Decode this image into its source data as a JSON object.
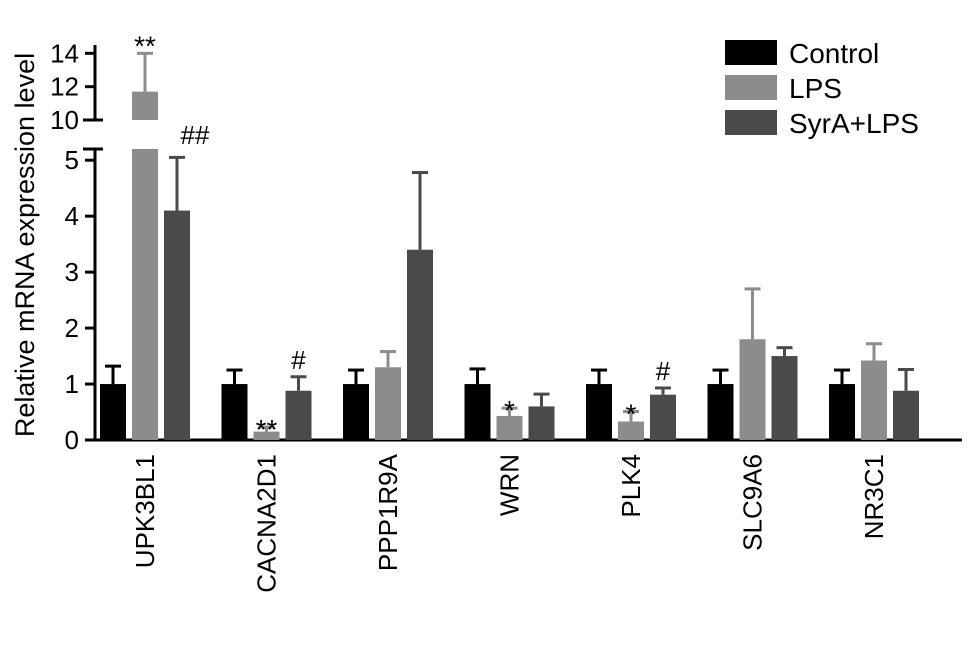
{
  "chart_data": {
    "type": "bar",
    "title": "",
    "xlabel": "",
    "ylabel": "Relative mRNA expression level",
    "categories": [
      "UPK3BL1",
      "CACNA2D1",
      "PPP1R9A",
      "WRN",
      "PLK4",
      "SLC9A6",
      "NR3C1"
    ],
    "series": [
      {
        "name": "Control",
        "color": "#000000",
        "values": [
          1.0,
          1.0,
          1.0,
          1.0,
          1.0,
          1.0,
          1.0
        ],
        "errors": [
          0.32,
          0.25,
          0.25,
          0.27,
          0.25,
          0.25,
          0.25
        ],
        "annotations": [
          "",
          "",
          "",
          "",
          "",
          "",
          ""
        ]
      },
      {
        "name": "LPS",
        "color": "#8c8c8c",
        "values": [
          11.7,
          0.15,
          1.3,
          0.43,
          0.33,
          1.8,
          1.42
        ],
        "errors": [
          2.3,
          0.08,
          0.28,
          0.14,
          0.18,
          0.9,
          0.3
        ],
        "annotations": [
          "**",
          "**",
          "",
          "*",
          "*",
          "",
          ""
        ]
      },
      {
        "name": "SyrA+LPS",
        "color": "#4a4a4a",
        "values": [
          4.1,
          0.88,
          3.4,
          0.6,
          0.81,
          1.5,
          0.88
        ],
        "errors": [
          0.95,
          0.25,
          1.38,
          0.22,
          0.12,
          0.15,
          0.38
        ],
        "annotations": [
          "##",
          "#",
          "",
          "",
          "#",
          "",
          ""
        ]
      }
    ],
    "y_lower": {
      "range": [
        0,
        5.2
      ],
      "ticks": [
        "0",
        "1",
        "2",
        "3",
        "4",
        "5"
      ]
    },
    "y_upper": {
      "range": [
        10,
        14.5
      ],
      "ticks": [
        "10",
        "12",
        "14"
      ]
    },
    "axis_break": true,
    "grid": false,
    "legend_position": "top-right",
    "error_bars": "upper only"
  }
}
